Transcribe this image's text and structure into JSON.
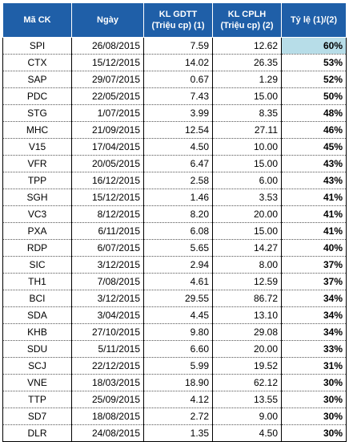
{
  "headers": {
    "code": "Mã CK",
    "date": "Ngày",
    "kl_gdtt_line1": "KL GDTT",
    "kl_gdtt_line2": "(Triệu cp) (1)",
    "kl_cplh_line1": "KL CPLH",
    "kl_cplh_line2": "(Triệu cp) (2)",
    "ratio": "Tỷ lệ (1)/(2)"
  },
  "highlight_color": "#b7dde8",
  "header_color": "#1f5fa8",
  "rows": [
    {
      "code": "SPI",
      "date": "26/08/2015",
      "gdtt": "7.59",
      "cplh": "12.62",
      "ratio": "60%"
    },
    {
      "code": "CTX",
      "date": "15/12/2015",
      "gdtt": "14.02",
      "cplh": "26.35",
      "ratio": "53%"
    },
    {
      "code": "SAP",
      "date": "29/07/2015",
      "gdtt": "0.67",
      "cplh": "1.29",
      "ratio": "52%"
    },
    {
      "code": "PDC",
      "date": "22/05/2015",
      "gdtt": "7.43",
      "cplh": "15.00",
      "ratio": "50%"
    },
    {
      "code": "STG",
      "date": "1/07/2015",
      "gdtt": "3.99",
      "cplh": "8.35",
      "ratio": "48%"
    },
    {
      "code": "MHC",
      "date": "21/09/2015",
      "gdtt": "12.54",
      "cplh": "27.11",
      "ratio": "46%"
    },
    {
      "code": "V15",
      "date": "17/04/2015",
      "gdtt": "4.50",
      "cplh": "10.00",
      "ratio": "45%"
    },
    {
      "code": "VFR",
      "date": "20/05/2015",
      "gdtt": "6.47",
      "cplh": "15.00",
      "ratio": "43%"
    },
    {
      "code": "TPP",
      "date": "16/12/2015",
      "gdtt": "2.58",
      "cplh": "6.00",
      "ratio": "43%"
    },
    {
      "code": "SGH",
      "date": "15/12/2015",
      "gdtt": "1.46",
      "cplh": "3.53",
      "ratio": "41%"
    },
    {
      "code": "VC3",
      "date": "8/12/2015",
      "gdtt": "8.20",
      "cplh": "20.00",
      "ratio": "41%"
    },
    {
      "code": "PXA",
      "date": "6/11/2015",
      "gdtt": "6.08",
      "cplh": "15.00",
      "ratio": "41%"
    },
    {
      "code": "RDP",
      "date": "6/07/2015",
      "gdtt": "5.65",
      "cplh": "14.27",
      "ratio": "40%"
    },
    {
      "code": "SIC",
      "date": "3/12/2015",
      "gdtt": "2.94",
      "cplh": "8.00",
      "ratio": "37%"
    },
    {
      "code": "TH1",
      "date": "7/08/2015",
      "gdtt": "4.61",
      "cplh": "12.59",
      "ratio": "37%"
    },
    {
      "code": "BCI",
      "date": "3/12/2015",
      "gdtt": "29.55",
      "cplh": "86.72",
      "ratio": "34%"
    },
    {
      "code": "SDA",
      "date": "3/04/2015",
      "gdtt": "4.45",
      "cplh": "13.10",
      "ratio": "34%"
    },
    {
      "code": "KHB",
      "date": "27/10/2015",
      "gdtt": "9.80",
      "cplh": "29.08",
      "ratio": "34%"
    },
    {
      "code": "SDU",
      "date": "5/11/2015",
      "gdtt": "6.60",
      "cplh": "20.00",
      "ratio": "33%"
    },
    {
      "code": "SCJ",
      "date": "22/12/2015",
      "gdtt": "5.99",
      "cplh": "19.52",
      "ratio": "31%"
    },
    {
      "code": "VNE",
      "date": "18/03/2015",
      "gdtt": "18.90",
      "cplh": "62.12",
      "ratio": "30%"
    },
    {
      "code": "TTP",
      "date": "25/09/2015",
      "gdtt": "4.12",
      "cplh": "13.55",
      "ratio": "30%"
    },
    {
      "code": "SD7",
      "date": "18/08/2015",
      "gdtt": "2.72",
      "cplh": "9.00",
      "ratio": "30%"
    },
    {
      "code": "DLR",
      "date": "24/08/2015",
      "gdtt": "1.35",
      "cplh": "4.50",
      "ratio": "30%"
    }
  ]
}
